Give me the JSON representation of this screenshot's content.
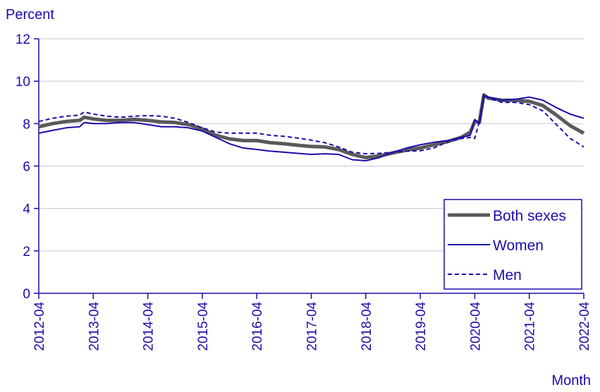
{
  "chart_data": {
    "type": "line",
    "title": "",
    "ylabel": "Percent",
    "xlabel": "Month",
    "ylim": [
      0,
      12
    ],
    "yticks": [
      0,
      2,
      4,
      6,
      8,
      10,
      12
    ],
    "grid": true,
    "legend_position": "bottom-right",
    "x_range": [
      "2012-04",
      "2022-04"
    ],
    "x_tick_labels": [
      "2012-04",
      "2013-04",
      "2014-04",
      "2015-04",
      "2016-04",
      "2017-04",
      "2018-04",
      "2019-04",
      "2020-04",
      "2021-04",
      "2022-04"
    ],
    "series": [
      {
        "name": "Both sexes",
        "color": "#5a5a5a",
        "style": "solid-thick",
        "points": [
          [
            "2012-04",
            7.85
          ],
          [
            "2012-07",
            8.0
          ],
          [
            "2012-10",
            8.1
          ],
          [
            "2013-01",
            8.15
          ],
          [
            "2013-02",
            8.3
          ],
          [
            "2013-04",
            8.22
          ],
          [
            "2013-07",
            8.15
          ],
          [
            "2013-10",
            8.15
          ],
          [
            "2014-01",
            8.2
          ],
          [
            "2014-04",
            8.15
          ],
          [
            "2014-07",
            8.08
          ],
          [
            "2014-10",
            8.05
          ],
          [
            "2015-01",
            7.95
          ],
          [
            "2015-04",
            7.75
          ],
          [
            "2015-07",
            7.45
          ],
          [
            "2015-10",
            7.28
          ],
          [
            "2016-01",
            7.2
          ],
          [
            "2016-04",
            7.2
          ],
          [
            "2016-07",
            7.1
          ],
          [
            "2016-10",
            7.05
          ],
          [
            "2017-01",
            6.98
          ],
          [
            "2017-04",
            6.92
          ],
          [
            "2017-07",
            6.9
          ],
          [
            "2017-10",
            6.78
          ],
          [
            "2018-01",
            6.55
          ],
          [
            "2018-04",
            6.4
          ],
          [
            "2018-07",
            6.48
          ],
          [
            "2018-10",
            6.62
          ],
          [
            "2019-01",
            6.75
          ],
          [
            "2019-04",
            6.85
          ],
          [
            "2019-07",
            7.0
          ],
          [
            "2019-10",
            7.15
          ],
          [
            "2020-01",
            7.35
          ],
          [
            "2020-03",
            7.6
          ],
          [
            "2020-04",
            8.1
          ],
          [
            "2020-05",
            8.05
          ],
          [
            "2020-06",
            9.35
          ],
          [
            "2020-07",
            9.2
          ],
          [
            "2020-10",
            9.1
          ],
          [
            "2021-01",
            9.1
          ],
          [
            "2021-04",
            9.05
          ],
          [
            "2021-07",
            8.85
          ],
          [
            "2021-10",
            8.4
          ],
          [
            "2022-01",
            7.9
          ],
          [
            "2022-04",
            7.55
          ]
        ]
      },
      {
        "name": "Women",
        "color": "#1a0dab",
        "style": "solid",
        "points": [
          [
            "2012-04",
            7.55
          ],
          [
            "2012-07",
            7.68
          ],
          [
            "2012-10",
            7.8
          ],
          [
            "2013-01",
            7.85
          ],
          [
            "2013-02",
            8.05
          ],
          [
            "2013-04",
            8.0
          ],
          [
            "2013-07",
            8.0
          ],
          [
            "2013-10",
            8.05
          ],
          [
            "2014-01",
            8.05
          ],
          [
            "2014-04",
            7.95
          ],
          [
            "2014-07",
            7.85
          ],
          [
            "2014-10",
            7.85
          ],
          [
            "2015-01",
            7.8
          ],
          [
            "2015-04",
            7.65
          ],
          [
            "2015-07",
            7.35
          ],
          [
            "2015-10",
            7.05
          ],
          [
            "2016-01",
            6.85
          ],
          [
            "2016-04",
            6.78
          ],
          [
            "2016-07",
            6.7
          ],
          [
            "2016-10",
            6.65
          ],
          [
            "2017-01",
            6.6
          ],
          [
            "2017-04",
            6.55
          ],
          [
            "2017-07",
            6.58
          ],
          [
            "2017-10",
            6.55
          ],
          [
            "2018-01",
            6.3
          ],
          [
            "2018-04",
            6.25
          ],
          [
            "2018-07",
            6.4
          ],
          [
            "2018-10",
            6.65
          ],
          [
            "2019-01",
            6.85
          ],
          [
            "2019-04",
            7.0
          ],
          [
            "2019-07",
            7.12
          ],
          [
            "2019-10",
            7.2
          ],
          [
            "2020-01",
            7.35
          ],
          [
            "2020-03",
            7.45
          ],
          [
            "2020-04",
            8.2
          ],
          [
            "2020-05",
            8.0
          ],
          [
            "2020-06",
            9.3
          ],
          [
            "2020-07",
            9.25
          ],
          [
            "2020-10",
            9.1
          ],
          [
            "2021-01",
            9.15
          ],
          [
            "2021-04",
            9.25
          ],
          [
            "2021-07",
            9.1
          ],
          [
            "2021-10",
            8.75
          ],
          [
            "2022-01",
            8.45
          ],
          [
            "2022-04",
            8.25
          ]
        ]
      },
      {
        "name": "Men",
        "color": "#1a0dab",
        "style": "dashed",
        "points": [
          [
            "2012-04",
            8.1
          ],
          [
            "2012-07",
            8.25
          ],
          [
            "2012-10",
            8.35
          ],
          [
            "2013-01",
            8.4
          ],
          [
            "2013-02",
            8.55
          ],
          [
            "2013-04",
            8.45
          ],
          [
            "2013-07",
            8.35
          ],
          [
            "2013-10",
            8.3
          ],
          [
            "2014-01",
            8.35
          ],
          [
            "2014-04",
            8.38
          ],
          [
            "2014-07",
            8.35
          ],
          [
            "2014-10",
            8.25
          ],
          [
            "2015-01",
            8.05
          ],
          [
            "2015-04",
            7.8
          ],
          [
            "2015-07",
            7.6
          ],
          [
            "2015-10",
            7.55
          ],
          [
            "2016-01",
            7.55
          ],
          [
            "2016-04",
            7.55
          ],
          [
            "2016-07",
            7.45
          ],
          [
            "2016-10",
            7.4
          ],
          [
            "2017-01",
            7.32
          ],
          [
            "2017-04",
            7.22
          ],
          [
            "2017-07",
            7.1
          ],
          [
            "2017-10",
            6.9
          ],
          [
            "2018-01",
            6.65
          ],
          [
            "2018-04",
            6.58
          ],
          [
            "2018-07",
            6.6
          ],
          [
            "2018-10",
            6.65
          ],
          [
            "2019-01",
            6.7
          ],
          [
            "2019-04",
            6.72
          ],
          [
            "2019-07",
            6.85
          ],
          [
            "2019-10",
            7.15
          ],
          [
            "2020-01",
            7.3
          ],
          [
            "2020-03",
            7.35
          ],
          [
            "2020-04",
            7.3
          ],
          [
            "2020-05",
            8.1
          ],
          [
            "2020-06",
            9.4
          ],
          [
            "2020-07",
            9.2
          ],
          [
            "2020-10",
            9.0
          ],
          [
            "2021-01",
            9.0
          ],
          [
            "2021-04",
            8.9
          ],
          [
            "2021-07",
            8.6
          ],
          [
            "2021-10",
            7.95
          ],
          [
            "2022-01",
            7.3
          ],
          [
            "2022-04",
            6.9
          ]
        ]
      }
    ]
  }
}
